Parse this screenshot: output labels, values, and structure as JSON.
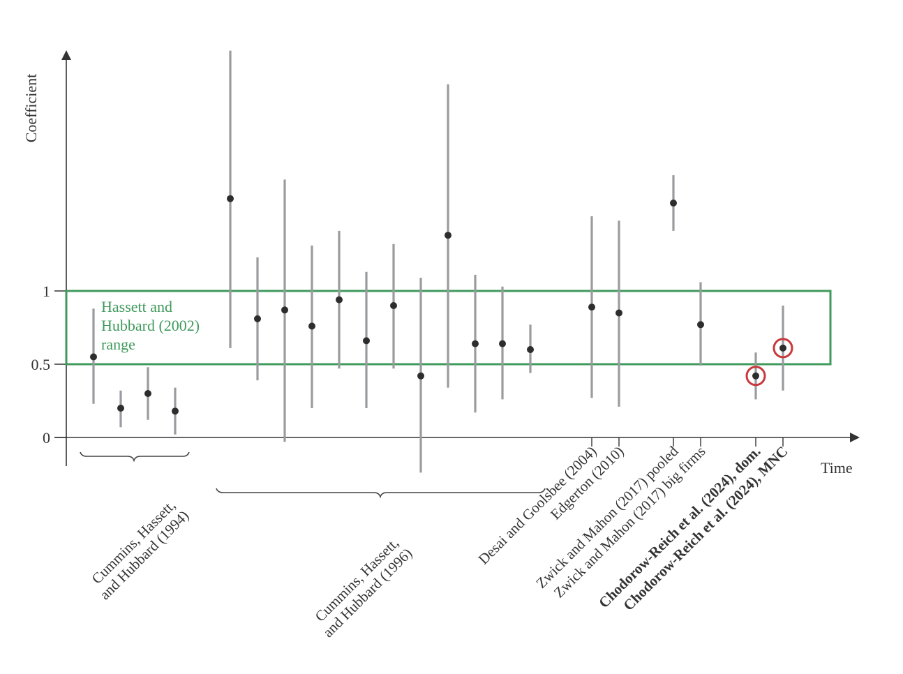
{
  "chart_data": {
    "type": "scatter",
    "subtype": "point-with-error-bars",
    "title": "",
    "xlabel": "Time",
    "ylabel": "Coefficient",
    "ylim": [
      -0.3,
      2.7
    ],
    "yticks": [
      {
        "value": 0,
        "label": "0"
      },
      {
        "value": 0.5,
        "label": "0.5"
      },
      {
        "value": 1,
        "label": "1"
      }
    ],
    "grid": false,
    "range_band": {
      "label_lines": [
        "Hassett and",
        "Hubbard (2002)",
        "range"
      ],
      "low": 0.5,
      "high": 1.0,
      "color": "#3f9a5c"
    },
    "highlight_color": "#c8393d",
    "points": [
      {
        "group": "chh1994",
        "estimate": 0.55,
        "ci_low": 0.23,
        "ci_high": 0.88,
        "highlight": false
      },
      {
        "group": "chh1994",
        "estimate": 0.2,
        "ci_low": 0.07,
        "ci_high": 0.32,
        "highlight": false
      },
      {
        "group": "chh1994",
        "estimate": 0.3,
        "ci_low": 0.12,
        "ci_high": 0.48,
        "highlight": false
      },
      {
        "group": "chh1994",
        "estimate": 0.18,
        "ci_low": 0.02,
        "ci_high": 0.34,
        "highlight": false
      },
      {
        "group": "chh1996",
        "estimate": 1.63,
        "ci_low": 0.61,
        "ci_high": 2.64,
        "highlight": false
      },
      {
        "group": "chh1996",
        "estimate": 0.81,
        "ci_low": 0.39,
        "ci_high": 1.23,
        "highlight": false
      },
      {
        "group": "chh1996",
        "estimate": 0.87,
        "ci_low": -0.03,
        "ci_high": 1.76,
        "highlight": false
      },
      {
        "group": "chh1996",
        "estimate": 0.76,
        "ci_low": 0.2,
        "ci_high": 1.31,
        "highlight": false
      },
      {
        "group": "chh1996",
        "estimate": 0.94,
        "ci_low": 0.47,
        "ci_high": 1.41,
        "highlight": false
      },
      {
        "group": "chh1996",
        "estimate": 0.66,
        "ci_low": 0.2,
        "ci_high": 1.13,
        "highlight": false
      },
      {
        "group": "chh1996",
        "estimate": 0.9,
        "ci_low": 0.47,
        "ci_high": 1.32,
        "highlight": false
      },
      {
        "group": "chh1996",
        "estimate": 0.42,
        "ci_low": -0.24,
        "ci_high": 1.09,
        "highlight": false
      },
      {
        "group": "chh1996",
        "estimate": 1.38,
        "ci_low": 0.34,
        "ci_high": 2.41,
        "highlight": false
      },
      {
        "group": "chh1996",
        "estimate": 0.64,
        "ci_low": 0.17,
        "ci_high": 1.11,
        "highlight": false
      },
      {
        "group": "chh1996",
        "estimate": 0.64,
        "ci_low": 0.26,
        "ci_high": 1.03,
        "highlight": false
      },
      {
        "group": "chh1996",
        "estimate": 0.6,
        "ci_low": 0.44,
        "ci_high": 0.77,
        "highlight": false
      },
      {
        "label": "Desai and Goolsbee (2004)",
        "estimate": 0.89,
        "ci_low": 0.27,
        "ci_high": 1.51,
        "highlight": false,
        "bold": false
      },
      {
        "label": "Edgerton (2010)",
        "estimate": 0.85,
        "ci_low": 0.21,
        "ci_high": 1.48,
        "highlight": false,
        "bold": false
      },
      {
        "label": "Zwick and Mahon (2017) pooled",
        "estimate": 1.6,
        "ci_low": 1.41,
        "ci_high": 1.79,
        "highlight": false,
        "bold": false
      },
      {
        "label": "Zwick and Mahon (2017) big firms",
        "estimate": 0.77,
        "ci_low": 0.49,
        "ci_high": 1.06,
        "highlight": false,
        "bold": false
      },
      {
        "label": "Chodorow-Reich et al. (2024), dom.",
        "estimate": 0.42,
        "ci_low": 0.26,
        "ci_high": 0.58,
        "highlight": true,
        "bold": true
      },
      {
        "label": "Chodorow-Reich et al. (2024), MNC",
        "estimate": 0.61,
        "ci_low": 0.32,
        "ci_high": 0.9,
        "highlight": true,
        "bold": true
      }
    ],
    "group_labels": [
      {
        "id": "chh1994",
        "lines": [
          "Cummins, Hassett,",
          "and Hubbard (1994)"
        ]
      },
      {
        "id": "chh1996",
        "lines": [
          "Cummins, Hassett,",
          "and Hubbard (1996)"
        ]
      }
    ]
  }
}
